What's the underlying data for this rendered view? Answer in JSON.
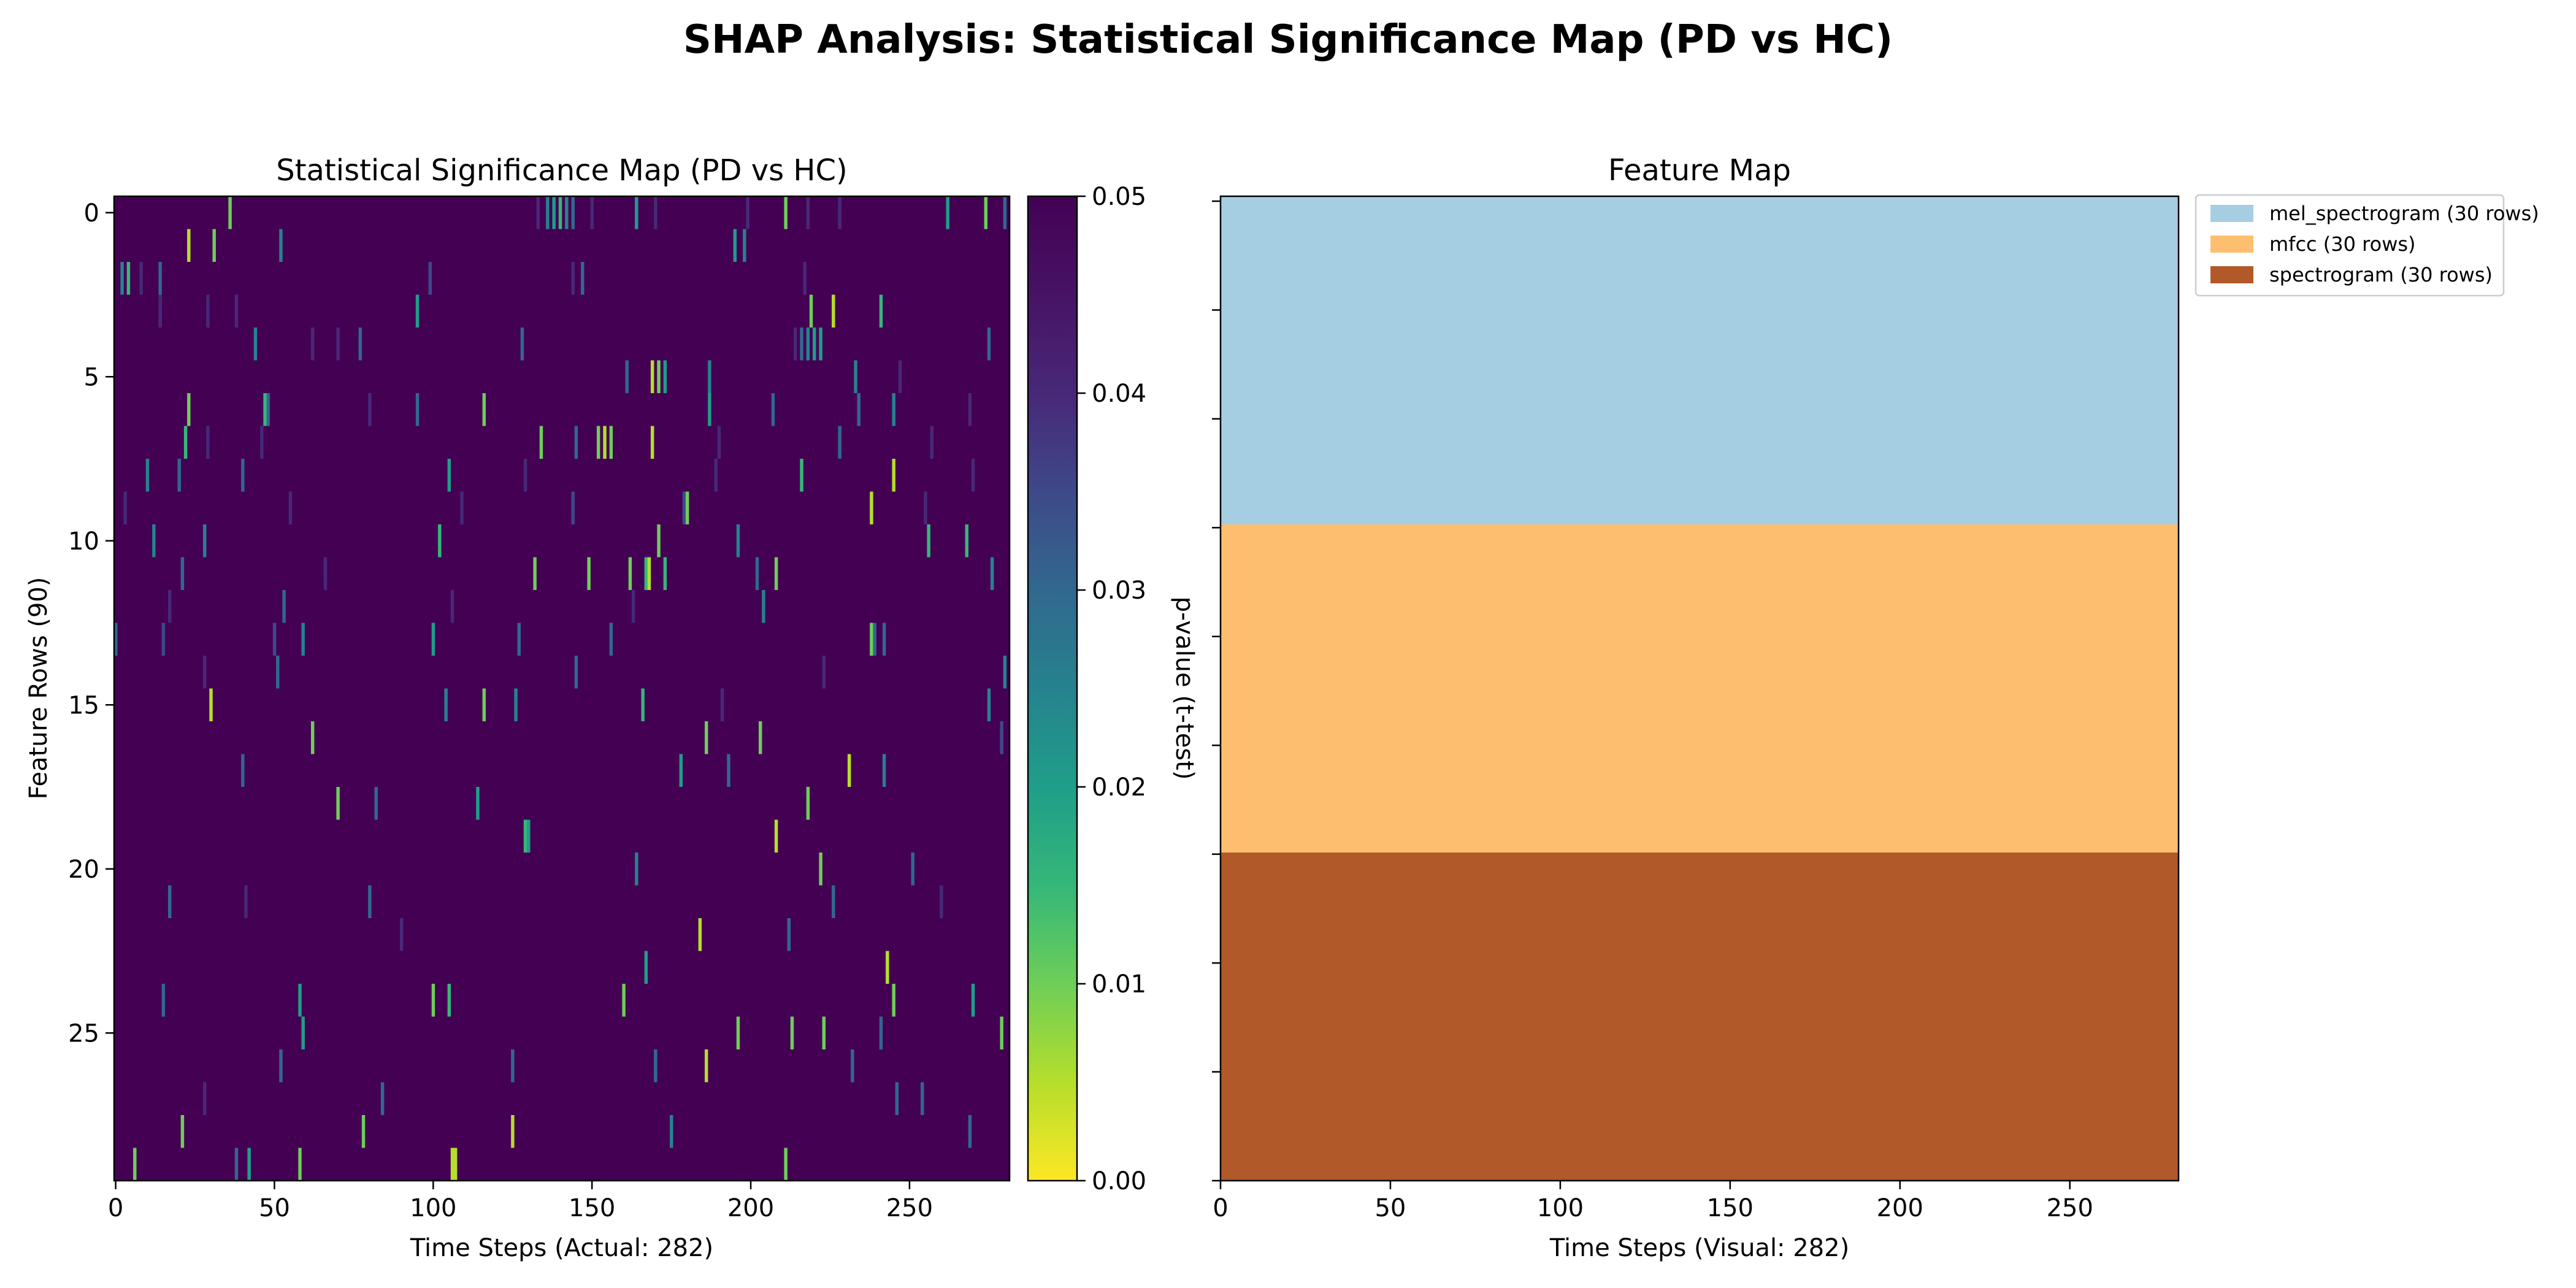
{
  "suptitle": "SHAP Analysis: Statistical Significance Map (PD vs HC)",
  "chart_data": [
    {
      "type": "heatmap",
      "title": "Statistical Significance Map (PD vs HC)",
      "xlabel": "Time Steps (Actual: 282)",
      "ylabel": "Feature Rows (90)",
      "x_range": [
        0,
        282
      ],
      "y_range": [
        0,
        30
      ],
      "xticks": [
        0,
        50,
        100,
        150,
        200,
        250
      ],
      "yticks": [
        0,
        5,
        10,
        15,
        20,
        25
      ],
      "background_value": 0.05,
      "colormap": "viridis (reversed): 0.00 = yellow, 0.05 = dark purple",
      "colorbar": {
        "label": "p-value (t-test)",
        "ticks": [
          "0.00",
          "0.01",
          "0.02",
          "0.03",
          "0.04",
          "0.05"
        ],
        "range": [
          0,
          0.05
        ]
      },
      "cells": [
        {
          "row": 0,
          "col": 36,
          "p": 0.01
        },
        {
          "row": 0,
          "col": 133,
          "p": 0.04
        },
        {
          "row": 0,
          "col": 136,
          "p": 0.025
        },
        {
          "row": 0,
          "col": 138,
          "p": 0.02
        },
        {
          "row": 0,
          "col": 140,
          "p": 0.015
        },
        {
          "row": 0,
          "col": 142,
          "p": 0.025
        },
        {
          "row": 0,
          "col": 144,
          "p": 0.03
        },
        {
          "row": 0,
          "col": 150,
          "p": 0.04
        },
        {
          "row": 0,
          "col": 164,
          "p": 0.02
        },
        {
          "row": 0,
          "col": 170,
          "p": 0.04
        },
        {
          "row": 0,
          "col": 199,
          "p": 0.04
        },
        {
          "row": 0,
          "col": 211,
          "p": 0.01
        },
        {
          "row": 0,
          "col": 218,
          "p": 0.04
        },
        {
          "row": 0,
          "col": 228,
          "p": 0.04
        },
        {
          "row": 0,
          "col": 262,
          "p": 0.02
        },
        {
          "row": 0,
          "col": 274,
          "p": 0.01
        },
        {
          "row": 0,
          "col": 280,
          "p": 0.03
        },
        {
          "row": 1,
          "col": 23,
          "p": 0.005
        },
        {
          "row": 1,
          "col": 31,
          "p": 0.01
        },
        {
          "row": 1,
          "col": 52,
          "p": 0.025
        },
        {
          "row": 1,
          "col": 195,
          "p": 0.02
        },
        {
          "row": 1,
          "col": 198,
          "p": 0.025
        },
        {
          "row": 2,
          "col": 2,
          "p": 0.025
        },
        {
          "row": 2,
          "col": 4,
          "p": 0.015
        },
        {
          "row": 2,
          "col": 8,
          "p": 0.04
        },
        {
          "row": 2,
          "col": 14,
          "p": 0.03
        },
        {
          "row": 2,
          "col": 99,
          "p": 0.035
        },
        {
          "row": 2,
          "col": 144,
          "p": 0.04
        },
        {
          "row": 2,
          "col": 147,
          "p": 0.03
        },
        {
          "row": 2,
          "col": 217,
          "p": 0.04
        },
        {
          "row": 3,
          "col": 14,
          "p": 0.04
        },
        {
          "row": 3,
          "col": 29,
          "p": 0.04
        },
        {
          "row": 3,
          "col": 38,
          "p": 0.04
        },
        {
          "row": 3,
          "col": 95,
          "p": 0.02
        },
        {
          "row": 3,
          "col": 219,
          "p": 0.01
        },
        {
          "row": 3,
          "col": 226,
          "p": 0.005
        },
        {
          "row": 3,
          "col": 241,
          "p": 0.015
        },
        {
          "row": 4,
          "col": 44,
          "p": 0.025
        },
        {
          "row": 4,
          "col": 62,
          "p": 0.04
        },
        {
          "row": 4,
          "col": 70,
          "p": 0.04
        },
        {
          "row": 4,
          "col": 77,
          "p": 0.03
        },
        {
          "row": 4,
          "col": 128,
          "p": 0.03
        },
        {
          "row": 4,
          "col": 214,
          "p": 0.04
        },
        {
          "row": 4,
          "col": 216,
          "p": 0.03
        },
        {
          "row": 4,
          "col": 218,
          "p": 0.025
        },
        {
          "row": 4,
          "col": 220,
          "p": 0.02
        },
        {
          "row": 4,
          "col": 222,
          "p": 0.02
        },
        {
          "row": 4,
          "col": 275,
          "p": 0.03
        },
        {
          "row": 5,
          "col": 161,
          "p": 0.03
        },
        {
          "row": 5,
          "col": 169,
          "p": 0.005
        },
        {
          "row": 5,
          "col": 171,
          "p": 0.01
        },
        {
          "row": 5,
          "col": 173,
          "p": 0.02
        },
        {
          "row": 5,
          "col": 187,
          "p": 0.025
        },
        {
          "row": 5,
          "col": 233,
          "p": 0.025
        },
        {
          "row": 5,
          "col": 247,
          "p": 0.04
        },
        {
          "row": 6,
          "col": 23,
          "p": 0.01
        },
        {
          "row": 6,
          "col": 48,
          "p": 0.03
        },
        {
          "row": 6,
          "col": 47,
          "p": 0.015
        },
        {
          "row": 6,
          "col": 80,
          "p": 0.04
        },
        {
          "row": 6,
          "col": 95,
          "p": 0.03
        },
        {
          "row": 6,
          "col": 116,
          "p": 0.01
        },
        {
          "row": 6,
          "col": 187,
          "p": 0.02
        },
        {
          "row": 6,
          "col": 207,
          "p": 0.03
        },
        {
          "row": 6,
          "col": 234,
          "p": 0.03
        },
        {
          "row": 6,
          "col": 245,
          "p": 0.025
        },
        {
          "row": 6,
          "col": 269,
          "p": 0.04
        },
        {
          "row": 7,
          "col": 22,
          "p": 0.015
        },
        {
          "row": 7,
          "col": 29,
          "p": 0.04
        },
        {
          "row": 7,
          "col": 46,
          "p": 0.04
        },
        {
          "row": 7,
          "col": 134,
          "p": 0.01
        },
        {
          "row": 7,
          "col": 145,
          "p": 0.03
        },
        {
          "row": 7,
          "col": 152,
          "p": 0.01
        },
        {
          "row": 7,
          "col": 154,
          "p": 0.005
        },
        {
          "row": 7,
          "col": 156,
          "p": 0.01
        },
        {
          "row": 7,
          "col": 169,
          "p": 0.005
        },
        {
          "row": 7,
          "col": 190,
          "p": 0.04
        },
        {
          "row": 7,
          "col": 228,
          "p": 0.03
        },
        {
          "row": 7,
          "col": 257,
          "p": 0.04
        },
        {
          "row": 8,
          "col": 10,
          "p": 0.025
        },
        {
          "row": 8,
          "col": 20,
          "p": 0.03
        },
        {
          "row": 8,
          "col": 40,
          "p": 0.03
        },
        {
          "row": 8,
          "col": 105,
          "p": 0.02
        },
        {
          "row": 8,
          "col": 129,
          "p": 0.04
        },
        {
          "row": 8,
          "col": 189,
          "p": 0.04
        },
        {
          "row": 8,
          "col": 216,
          "p": 0.015
        },
        {
          "row": 8,
          "col": 245,
          "p": 0.005
        },
        {
          "row": 8,
          "col": 270,
          "p": 0.04
        },
        {
          "row": 9,
          "col": 3,
          "p": 0.04
        },
        {
          "row": 9,
          "col": 55,
          "p": 0.04
        },
        {
          "row": 9,
          "col": 109,
          "p": 0.04
        },
        {
          "row": 9,
          "col": 144,
          "p": 0.035
        },
        {
          "row": 9,
          "col": 179,
          "p": 0.035
        },
        {
          "row": 9,
          "col": 180,
          "p": 0.01
        },
        {
          "row": 9,
          "col": 238,
          "p": 0.005
        },
        {
          "row": 9,
          "col": 255,
          "p": 0.04
        },
        {
          "row": 10,
          "col": 12,
          "p": 0.025
        },
        {
          "row": 10,
          "col": 28,
          "p": 0.025
        },
        {
          "row": 10,
          "col": 102,
          "p": 0.015
        },
        {
          "row": 10,
          "col": 171,
          "p": 0.01
        },
        {
          "row": 10,
          "col": 196,
          "p": 0.025
        },
        {
          "row": 10,
          "col": 256,
          "p": 0.015
        },
        {
          "row": 10,
          "col": 268,
          "p": 0.015
        },
        {
          "row": 11,
          "col": 21,
          "p": 0.03
        },
        {
          "row": 11,
          "col": 66,
          "p": 0.04
        },
        {
          "row": 11,
          "col": 132,
          "p": 0.01
        },
        {
          "row": 11,
          "col": 149,
          "p": 0.01
        },
        {
          "row": 11,
          "col": 162,
          "p": 0.01
        },
        {
          "row": 11,
          "col": 167,
          "p": 0.015
        },
        {
          "row": 11,
          "col": 168,
          "p": 0.005
        },
        {
          "row": 11,
          "col": 173,
          "p": 0.015
        },
        {
          "row": 11,
          "col": 202,
          "p": 0.03
        },
        {
          "row": 11,
          "col": 208,
          "p": 0.01
        },
        {
          "row": 11,
          "col": 276,
          "p": 0.025
        },
        {
          "row": 12,
          "col": 17,
          "p": 0.04
        },
        {
          "row": 12,
          "col": 53,
          "p": 0.03
        },
        {
          "row": 12,
          "col": 106,
          "p": 0.04
        },
        {
          "row": 12,
          "col": 163,
          "p": 0.04
        },
        {
          "row": 12,
          "col": 204,
          "p": 0.025
        },
        {
          "row": 13,
          "col": 0,
          "p": 0.03
        },
        {
          "row": 13,
          "col": 15,
          "p": 0.035
        },
        {
          "row": 13,
          "col": 50,
          "p": 0.035
        },
        {
          "row": 13,
          "col": 59,
          "p": 0.025
        },
        {
          "row": 13,
          "col": 100,
          "p": 0.02
        },
        {
          "row": 13,
          "col": 127,
          "p": 0.03
        },
        {
          "row": 13,
          "col": 156,
          "p": 0.03
        },
        {
          "row": 13,
          "col": 238,
          "p": 0.01
        },
        {
          "row": 13,
          "col": 239,
          "p": 0.03
        },
        {
          "row": 13,
          "col": 242,
          "p": 0.03
        },
        {
          "row": 14,
          "col": 28,
          "p": 0.04
        },
        {
          "row": 14,
          "col": 51,
          "p": 0.03
        },
        {
          "row": 14,
          "col": 145,
          "p": 0.03
        },
        {
          "row": 14,
          "col": 223,
          "p": 0.04
        },
        {
          "row": 14,
          "col": 280,
          "p": 0.025
        },
        {
          "row": 15,
          "col": 30,
          "p": 0.005
        },
        {
          "row": 15,
          "col": 104,
          "p": 0.025
        },
        {
          "row": 15,
          "col": 116,
          "p": 0.01
        },
        {
          "row": 15,
          "col": 126,
          "p": 0.025
        },
        {
          "row": 15,
          "col": 166,
          "p": 0.015
        },
        {
          "row": 15,
          "col": 191,
          "p": 0.04
        },
        {
          "row": 15,
          "col": 275,
          "p": 0.025
        },
        {
          "row": 16,
          "col": 62,
          "p": 0.01
        },
        {
          "row": 16,
          "col": 186,
          "p": 0.01
        },
        {
          "row": 16,
          "col": 203,
          "p": 0.01
        },
        {
          "row": 16,
          "col": 279,
          "p": 0.035
        },
        {
          "row": 17,
          "col": 40,
          "p": 0.03
        },
        {
          "row": 17,
          "col": 178,
          "p": 0.02
        },
        {
          "row": 17,
          "col": 193,
          "p": 0.03
        },
        {
          "row": 17,
          "col": 231,
          "p": 0.005
        },
        {
          "row": 17,
          "col": 242,
          "p": 0.025
        },
        {
          "row": 18,
          "col": 70,
          "p": 0.01
        },
        {
          "row": 18,
          "col": 82,
          "p": 0.03
        },
        {
          "row": 18,
          "col": 114,
          "p": 0.02
        },
        {
          "row": 18,
          "col": 218,
          "p": 0.01
        },
        {
          "row": 19,
          "col": 129,
          "p": 0.015
        },
        {
          "row": 19,
          "col": 130,
          "p": 0.02
        },
        {
          "row": 19,
          "col": 208,
          "p": 0.005
        },
        {
          "row": 20,
          "col": 164,
          "p": 0.025
        },
        {
          "row": 20,
          "col": 222,
          "p": 0.01
        },
        {
          "row": 20,
          "col": 251,
          "p": 0.03
        },
        {
          "row": 21,
          "col": 17,
          "p": 0.03
        },
        {
          "row": 21,
          "col": 41,
          "p": 0.04
        },
        {
          "row": 21,
          "col": 80,
          "p": 0.03
        },
        {
          "row": 21,
          "col": 226,
          "p": 0.03
        },
        {
          "row": 21,
          "col": 260,
          "p": 0.04
        },
        {
          "row": 22,
          "col": 90,
          "p": 0.04
        },
        {
          "row": 22,
          "col": 184,
          "p": 0.005
        },
        {
          "row": 22,
          "col": 212,
          "p": 0.03
        },
        {
          "row": 23,
          "col": 167,
          "p": 0.02
        },
        {
          "row": 23,
          "col": 243,
          "p": 0.005
        },
        {
          "row": 24,
          "col": 15,
          "p": 0.03
        },
        {
          "row": 24,
          "col": 58,
          "p": 0.02
        },
        {
          "row": 24,
          "col": 100,
          "p": 0.01
        },
        {
          "row": 24,
          "col": 105,
          "p": 0.015
        },
        {
          "row": 24,
          "col": 160,
          "p": 0.01
        },
        {
          "row": 24,
          "col": 245,
          "p": 0.01
        },
        {
          "row": 24,
          "col": 270,
          "p": 0.02
        },
        {
          "row": 25,
          "col": 59,
          "p": 0.02
        },
        {
          "row": 25,
          "col": 196,
          "p": 0.01
        },
        {
          "row": 25,
          "col": 213,
          "p": 0.01
        },
        {
          "row": 25,
          "col": 223,
          "p": 0.01
        },
        {
          "row": 25,
          "col": 241,
          "p": 0.03
        },
        {
          "row": 25,
          "col": 279,
          "p": 0.01
        },
        {
          "row": 26,
          "col": 52,
          "p": 0.03
        },
        {
          "row": 26,
          "col": 125,
          "p": 0.03
        },
        {
          "row": 26,
          "col": 170,
          "p": 0.03
        },
        {
          "row": 26,
          "col": 186,
          "p": 0.005
        },
        {
          "row": 26,
          "col": 232,
          "p": 0.03
        },
        {
          "row": 27,
          "col": 28,
          "p": 0.04
        },
        {
          "row": 27,
          "col": 84,
          "p": 0.03
        },
        {
          "row": 27,
          "col": 246,
          "p": 0.03
        },
        {
          "row": 27,
          "col": 254,
          "p": 0.03
        },
        {
          "row": 28,
          "col": 21,
          "p": 0.01
        },
        {
          "row": 28,
          "col": 78,
          "p": 0.01
        },
        {
          "row": 28,
          "col": 125,
          "p": 0.005
        },
        {
          "row": 28,
          "col": 175,
          "p": 0.025
        },
        {
          "row": 28,
          "col": 269,
          "p": 0.03
        },
        {
          "row": 29,
          "col": 6,
          "p": 0.01
        },
        {
          "row": 29,
          "col": 38,
          "p": 0.03
        },
        {
          "row": 29,
          "col": 42,
          "p": 0.02
        },
        {
          "row": 29,
          "col": 58,
          "p": 0.01
        },
        {
          "row": 29,
          "col": 106,
          "p": 0.005
        },
        {
          "row": 29,
          "col": 107,
          "p": 0.005
        },
        {
          "row": 29,
          "col": 211,
          "p": 0.01
        }
      ]
    },
    {
      "type": "area",
      "title": "Feature Map",
      "xlabel": "Time Steps (Visual: 282)",
      "x_range": [
        0,
        282
      ],
      "xticks": [
        0,
        50,
        100,
        150,
        200,
        250
      ],
      "y_range": [
        0,
        90
      ],
      "bands": [
        {
          "name": "mel_spectrogram (30 rows)",
          "row_start": 0,
          "row_end": 30,
          "color": "#a6cee3"
        },
        {
          "name": "mfcc (30 rows)",
          "row_start": 30,
          "row_end": 60,
          "color": "#fdbf6f"
        },
        {
          "name": "spectrogram (30 rows)",
          "row_start": 60,
          "row_end": 90,
          "color": "#b15928"
        }
      ],
      "legend_placement": "outside upper-right"
    }
  ]
}
